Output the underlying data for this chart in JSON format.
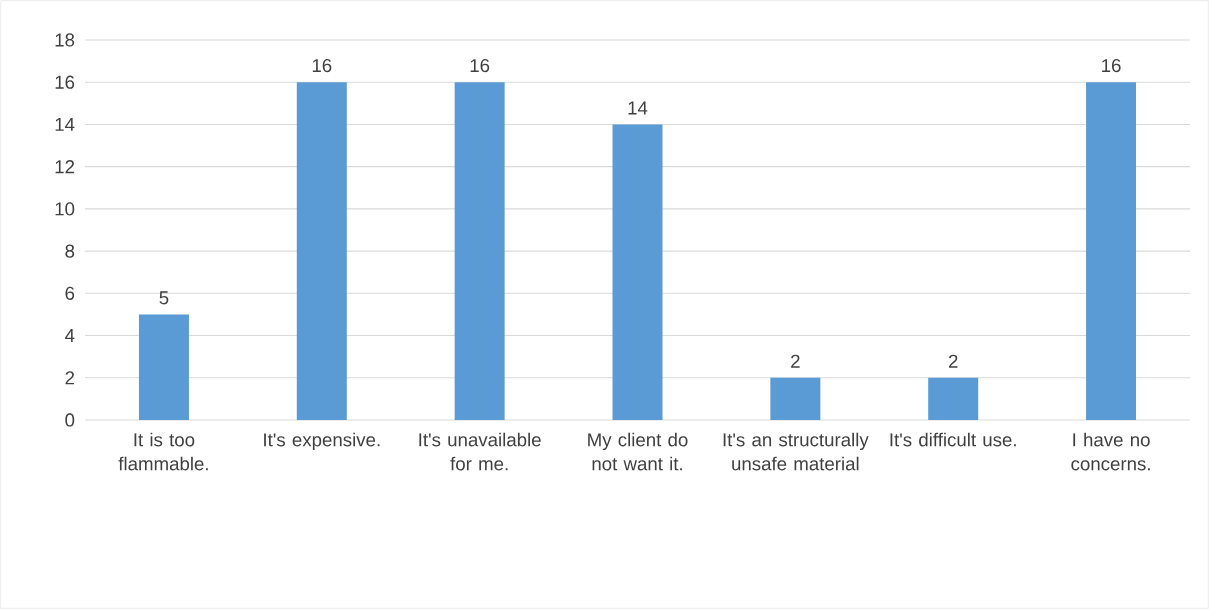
{
  "chart_data": {
    "type": "bar",
    "categories": [
      "It is too flammable.",
      "It's expensive.",
      "It's unavailable for me.",
      "My client do not want it.",
      "It's an structurally unsafe material",
      "It's difficult use.",
      "I have no concerns."
    ],
    "values": [
      5,
      16,
      16,
      14,
      2,
      2,
      16
    ],
    "color": "#5b9bd5",
    "ylim": [
      0,
      18
    ],
    "yticks": [
      0,
      2,
      4,
      6,
      8,
      10,
      12,
      14,
      16,
      18
    ],
    "grid": "y",
    "data_labels": true
  }
}
